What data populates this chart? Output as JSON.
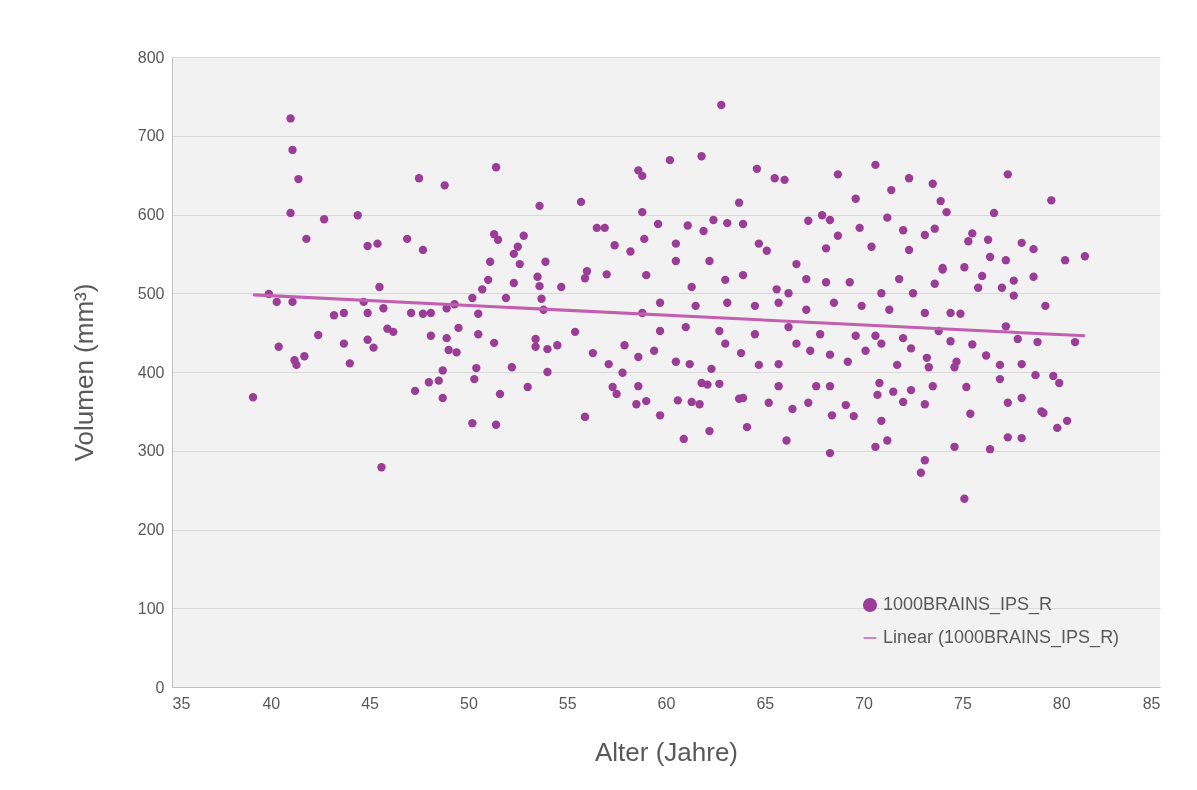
{
  "chart_data": {
    "type": "scatter",
    "xlabel": "Alter (Jahre)",
    "ylabel": "Volumen (mm³)",
    "xlim": [
      35,
      85
    ],
    "xticks": [
      35,
      40,
      45,
      50,
      55,
      60,
      65,
      70,
      75,
      80,
      85
    ],
    "ylim": [
      0,
      800
    ],
    "yticks": [
      0,
      100,
      200,
      300,
      400,
      500,
      600,
      700,
      800
    ],
    "grid": "y",
    "legend": "bottom right",
    "series": [
      {
        "name": "1000BRAINS_IPS_R",
        "color": "#9b3d96",
        "marker": "circle",
        "x": [
          39.1,
          39.9,
          40.3,
          40.4,
          41.0,
          41.1,
          41.4,
          41.0,
          41.8,
          41.1,
          41.2,
          41.3,
          41.7,
          42.7,
          42.4,
          43.2,
          43.7,
          43.7,
          44.0,
          44.4,
          44.7,
          44.9,
          44.9,
          45.4,
          45.5,
          44.9,
          45.2,
          45.7,
          45.9,
          46.2,
          46.9,
          47.5,
          47.7,
          47.1,
          47.7,
          48.1,
          48.1,
          47.3,
          48.0,
          48.5,
          48.7,
          48.7,
          48.8,
          48.9,
          48.9,
          49.0,
          49.4,
          49.5,
          49.3,
          50.2,
          50.5,
          50.5,
          50.4,
          50.3,
          50.7,
          51.0,
          51.1,
          51.3,
          51.5,
          51.4,
          51.3,
          51.6,
          51.9,
          52.2,
          52.3,
          52.3,
          52.5,
          52.6,
          52.8,
          53.0,
          53.4,
          53.4,
          53.5,
          53.6,
          53.7,
          53.8,
          53.9,
          53.6,
          54.0,
          54.0,
          54.5,
          54.7,
          55.4,
          55.7,
          55.9,
          56.3,
          55.9,
          56.0,
          56.5,
          56.9,
          57.0,
          57.4,
          58.2,
          58.6,
          58.8,
          58.8,
          58.9,
          57.1,
          57.3,
          57.5,
          57.8,
          57.9,
          58.5,
          58.6,
          58.6,
          45.6,
          50.2,
          51.4,
          55.9,
          59.7,
          60.9,
          62.2,
          64.1,
          66.1,
          68.3,
          70.6,
          71.2,
          72.9,
          73.1,
          75.1,
          74.6,
          76.4,
          77.3,
          78.0,
          79.8,
          80.3,
          79.0,
          75.4,
          62.8,
          60.2,
          61.8,
          64.6,
          63.7,
          65.5,
          66.0,
          68.7,
          70.6,
          72.3,
          73.5,
          71.4,
          69.6,
          77.3,
          79.5,
          76.6,
          73.9,
          74.2,
          71.2,
          69.8,
          78.0,
          78.6,
          80.2,
          81.2,
          78.6,
          79.2,
          80.7,
          79.9,
          79.6,
          79.1,
          78.7,
          78.0,
          78.8,
          77.6,
          77.2,
          76.4,
          76.0,
          75.3,
          75.5,
          76.3,
          75.1,
          74.0,
          73.6,
          75.8,
          74.9,
          76.9,
          76.9,
          77.3,
          78.0,
          75.2,
          74.6,
          73.5,
          73.3,
          72.4,
          72.0,
          73.1,
          71.5,
          70.7,
          69.5,
          69.1,
          68.4,
          68.3,
          67.2,
          66.4,
          65.2,
          65.7,
          63.9,
          63.7,
          62.7,
          62.1,
          61.8,
          61.3,
          61.7,
          60.6,
          59.0,
          59.6,
          61.1,
          61.9,
          62.4,
          63.1,
          63.9,
          67.2,
          67.9,
          68.3,
          68.7,
          70.4,
          72.3,
          73.6,
          73.1,
          72.0,
          66.6,
          68.1,
          65.1,
          64.7,
          60.5,
          59.0,
          61.3,
          63.0,
          65.6,
          67.1,
          69.3,
          71.8,
          74.0,
          77.0,
          77.6,
          77.2,
          77.8,
          76.2,
          75.5,
          74.7,
          74.4,
          73.8,
          73.2,
          72.4,
          71.7,
          70.9,
          70.1,
          69.6,
          69.2,
          68.3,
          67.3,
          66.6,
          65.7,
          64.7,
          63.8,
          63.0,
          62.3,
          61.2,
          60.5,
          59.4,
          59.7,
          61.0,
          62.7,
          64.5,
          66.2,
          67.8,
          70.6,
          72.0,
          74.4,
          73.1,
          71.3,
          69.9,
          68.5,
          67.1,
          65.7,
          64.5,
          63.1,
          61.5,
          59.7,
          58.8,
          60.5,
          62.2,
          63.9,
          66.2,
          68.1,
          70.9,
          72.5,
          67.6,
          70.8,
          70.9
        ],
        "values": [
          368,
          499,
          489,
          432,
          722,
          682,
          645,
          602,
          569,
          489,
          415,
          409,
          420,
          594,
          447,
          472,
          475,
          436,
          411,
          599,
          489,
          475,
          560,
          563,
          508,
          441,
          431,
          481,
          455,
          451,
          569,
          646,
          555,
          475,
          474,
          475,
          446,
          376,
          387,
          389,
          367,
          402,
          637,
          481,
          443,
          428,
          425,
          456,
          486,
          494,
          474,
          448,
          405,
          391,
          505,
          517,
          540,
          575,
          568,
          660,
          437,
          372,
          494,
          406,
          513,
          550,
          559,
          537,
          573,
          381,
          442,
          432,
          521,
          509,
          493,
          479,
          540,
          611,
          429,
          400,
          434,
          508,
          451,
          616,
          343,
          424,
          519,
          528,
          583,
          583,
          524,
          561,
          553,
          656,
          649,
          603,
          569,
          410,
          381,
          372,
          399,
          434,
          359,
          382,
          419,
          279,
          335,
          333,
          343,
          345,
          315,
          325,
          330,
          313,
          297,
          305,
          313,
          272,
          288,
          239,
          305,
          302,
          317,
          316,
          329,
          338,
          350,
          347,
          739,
          669,
          674,
          658,
          615,
          646,
          644,
          651,
          663,
          646,
          639,
          631,
          620,
          651,
          618,
          602,
          617,
          603,
          596,
          583,
          564,
          556,
          542,
          547,
          521,
          484,
          438,
          386,
          395,
          348,
          396,
          410,
          438,
          516,
          542,
          546,
          522,
          566,
          576,
          568,
          533,
          530,
          512,
          507,
          474,
          409,
          391,
          361,
          367,
          381,
          406,
          382,
          406,
          377,
          362,
          359,
          375,
          371,
          344,
          358,
          345,
          382,
          361,
          353,
          361,
          382,
          367,
          366,
          385,
          384,
          386,
          362,
          359,
          364,
          363,
          588,
          586,
          579,
          593,
          589,
          588,
          592,
          599,
          593,
          573,
          559,
          555,
          582,
          574,
          580,
          537,
          557,
          554,
          563,
          563,
          523,
          508,
          517,
          505,
          518,
          514,
          518,
          532,
          507,
          497,
          458,
          442,
          421,
          435,
          413,
          439,
          452,
          418,
          430,
          409,
          436,
          427,
          446,
          413,
          422,
          427,
          436,
          410,
          409,
          424,
          436,
          404,
          410,
          413,
          427,
          452,
          457,
          452,
          448,
          457,
          448,
          446,
          443,
          475,
          475,
          479,
          484,
          488,
          479,
          488,
          484,
          488,
          484,
          488,
          475,
          541,
          541,
          523,
          500,
          514,
          500,
          500,
          382,
          386,
          338
        ]
      },
      {
        "name": "Linear (1000BRAINS_IPS_R)",
        "type": "line",
        "color": "#c25fae",
        "x": [
          39.1,
          81.2
        ],
        "values": [
          498,
          446
        ]
      }
    ]
  }
}
